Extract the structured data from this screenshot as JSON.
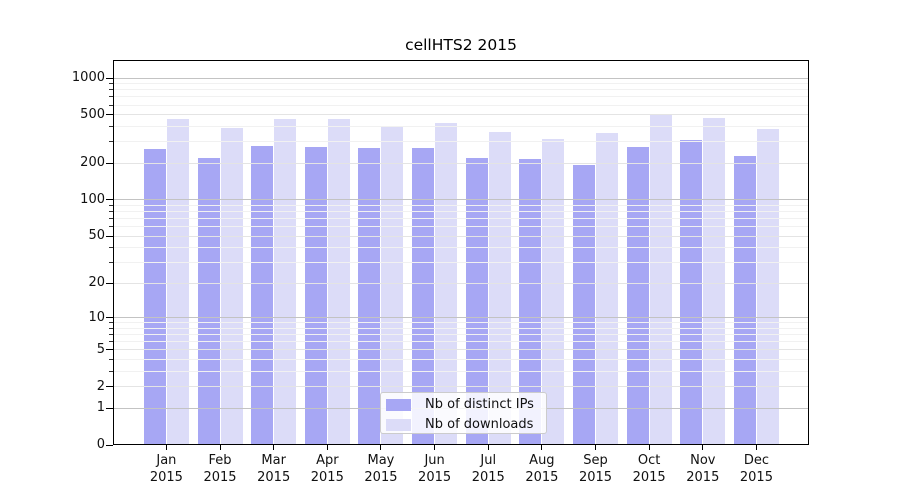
{
  "title": "cellHTS2 2015",
  "colors": {
    "ips": "#a7a7f4",
    "downloads": "#dcdcf8",
    "grid_decade": "#c3c3c3",
    "grid_major": "#e4e4e4",
    "grid_minor": "#f1f1f1",
    "axis": "#000000",
    "text": "#111111"
  },
  "legend": {
    "items": [
      {
        "id": "ips",
        "label": "Nb of distinct IPs"
      },
      {
        "id": "downloads",
        "label": "Nb of downloads"
      }
    ]
  },
  "y_axis": {
    "tick_labels": [
      "1000",
      "500",
      "200",
      "100",
      "50",
      "20",
      "10",
      "5",
      "2",
      "1",
      "0"
    ],
    "tick_values": [
      1000,
      500,
      200,
      100,
      50,
      20,
      10,
      5,
      2,
      1,
      0
    ]
  },
  "x_axis": {
    "months": [
      "Jan",
      "Feb",
      "Mar",
      "Apr",
      "May",
      "Jun",
      "Jul",
      "Aug",
      "Sep",
      "Oct",
      "Nov",
      "Dec"
    ],
    "year": "2015"
  },
  "chart_data": {
    "type": "bar",
    "title": "cellHTS2 2015",
    "categories": [
      "Jan 2015",
      "Feb 2015",
      "Mar 2015",
      "Apr 2015",
      "May 2015",
      "Jun 2015",
      "Jul 2015",
      "Aug 2015",
      "Sep 2015",
      "Oct 2015",
      "Nov 2015",
      "Dec 2015"
    ],
    "series": [
      {
        "name": "Nb of distinct IPs",
        "values": [
          263,
          222,
          280,
          274,
          268,
          265,
          220,
          219,
          195,
          270,
          313,
          228
        ]
      },
      {
        "name": "Nb of downloads",
        "values": [
          465,
          392,
          460,
          460,
          400,
          430,
          362,
          319,
          358,
          502,
          471,
          385
        ]
      }
    ],
    "xlabel": "",
    "ylabel": "",
    "yscale": "log1p",
    "yticks": [
      0,
      1,
      2,
      5,
      10,
      20,
      50,
      100,
      200,
      500,
      1000
    ],
    "minor_gridlines": [
      3,
      4,
      6,
      7,
      8,
      9,
      30,
      40,
      60,
      70,
      80,
      90,
      300,
      400,
      600,
      700,
      800,
      900
    ],
    "ylim": [
      0,
      1400
    ],
    "grid": true,
    "legend_position": "lower center"
  }
}
